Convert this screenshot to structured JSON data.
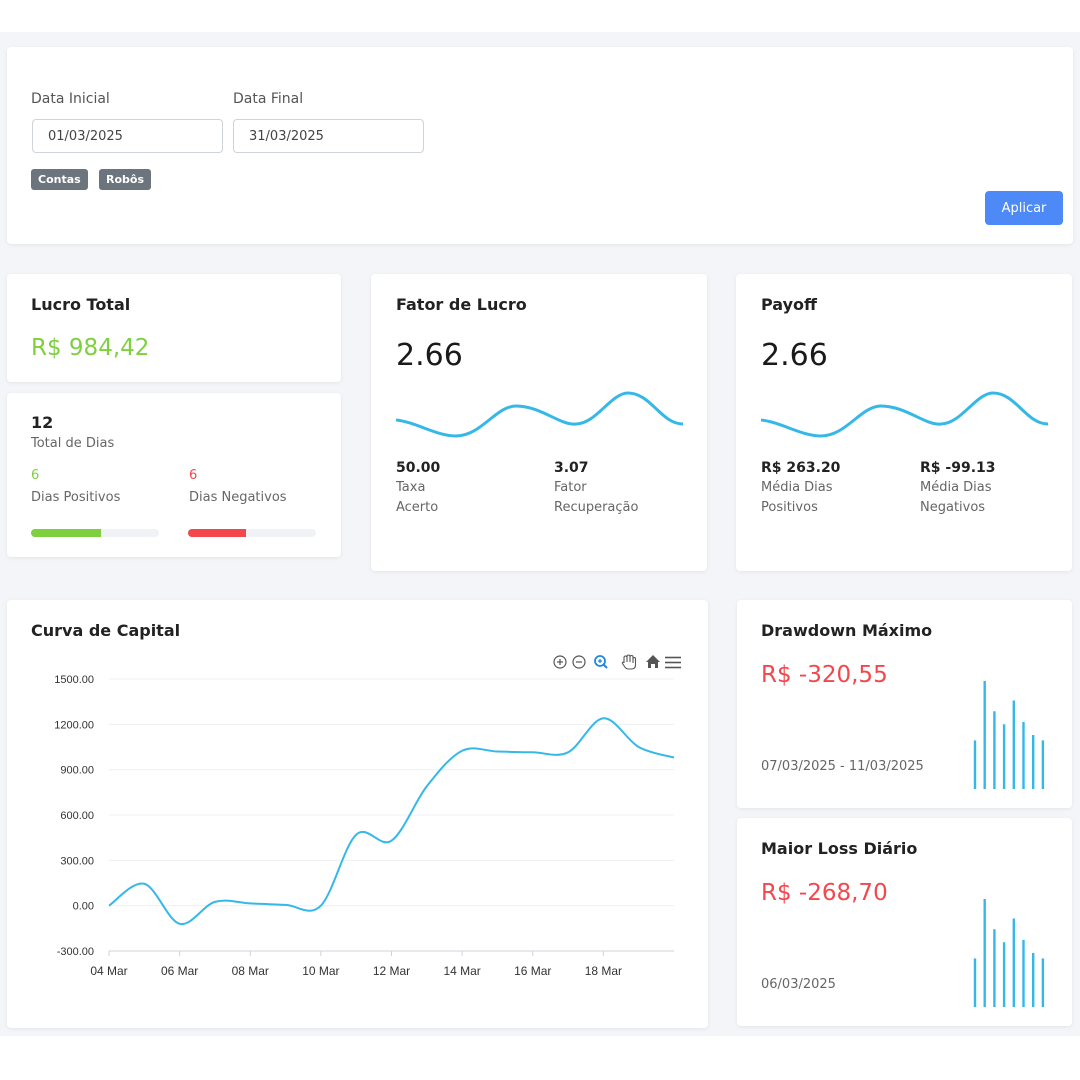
{
  "filters": {
    "start_label": "Data Inicial",
    "start_value": "01/03/2025",
    "end_label": "Data Final",
    "end_value": "31/03/2025",
    "tags": [
      "Contas",
      "Robôs"
    ],
    "apply_label": "Aplicar"
  },
  "lucro_total": {
    "title": "Lucro Total",
    "value": "R$ 984,42"
  },
  "dias": {
    "total": "12",
    "total_label": "Total de Dias",
    "positive": "6",
    "positive_label": "Dias Positivos",
    "negative": "6",
    "negative_label": "Dias Negativos",
    "positive_fraction": 0.55,
    "negative_fraction": 0.45
  },
  "fator_lucro": {
    "title": "Fator de Lucro",
    "value": "2.66",
    "stat1_value": "50.00",
    "stat1_label_1": "Taxa",
    "stat1_label_2": "Acerto",
    "stat2_value": "3.07",
    "stat2_label_1": "Fator",
    "stat2_label_2": "Recuperação"
  },
  "payoff": {
    "title": "Payoff",
    "value": "2.66",
    "stat1_value": "R$ 263.20",
    "stat1_label_1": "Média Dias",
    "stat1_label_2": "Positivos",
    "stat2_value": "R$ -99.13",
    "stat2_label_1": "Média Dias",
    "stat2_label_2": "Negativos"
  },
  "curva": {
    "title": "Curva de Capital",
    "toolbar_icons": [
      "zoom-in-icon",
      "zoom-out-icon",
      "magnifier-icon",
      "pan-hand-icon",
      "home-icon",
      "menu-icon"
    ]
  },
  "drawdown": {
    "title": "Drawdown Máximo",
    "value": "R$ -320,55",
    "period": "07/03/2025 - 11/03/2025",
    "bars": [
      0.45,
      1.0,
      0.72,
      0.6,
      0.82,
      0.62,
      0.5,
      0.45
    ]
  },
  "maior_loss": {
    "title": "Maior Loss Diário",
    "value": "R$ -268,70",
    "date": "06/03/2025",
    "bars": [
      0.45,
      1.0,
      0.72,
      0.6,
      0.82,
      0.62,
      0.5,
      0.45
    ]
  },
  "colors": {
    "accent": "#35b8e8",
    "green": "#7ed03f",
    "red": "#f4474d",
    "button": "#4d8af7",
    "tag": "#6c757d"
  },
  "chart_data": {
    "type": "line",
    "title": "",
    "xlabel": "",
    "ylabel": "",
    "ylim": [
      -300,
      1500
    ],
    "y_ticks": [
      "1500.00",
      "1200.00",
      "900.00",
      "600.00",
      "300.00",
      "0.00",
      "-300.00"
    ],
    "y_tick_values": [
      1500,
      1200,
      900,
      600,
      300,
      0,
      -300
    ],
    "x_ticks": [
      "04 Mar",
      "06 Mar",
      "08 Mar",
      "10 Mar",
      "12 Mar",
      "14 Mar",
      "16 Mar",
      "18 Mar"
    ],
    "x_tick_days": [
      4,
      6,
      8,
      10,
      12,
      14,
      16,
      18
    ],
    "series": [
      {
        "x": [
          4,
          5,
          6,
          7,
          8,
          9,
          10,
          11,
          12,
          13,
          14,
          15,
          16,
          17,
          18,
          19,
          20
        ],
        "values": [
          0,
          145,
          -120,
          25,
          15,
          5,
          0,
          470,
          430,
          790,
          1025,
          1020,
          1015,
          1015,
          1240,
          1050,
          980
        ]
      }
    ]
  }
}
